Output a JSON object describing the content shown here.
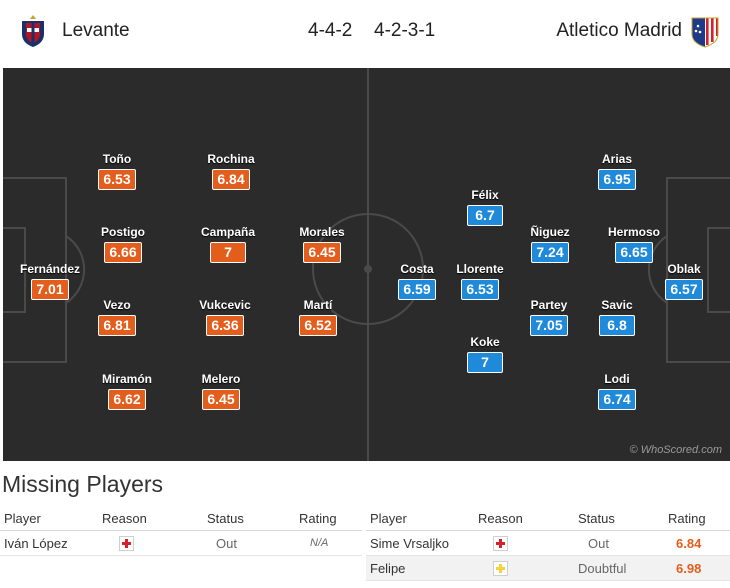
{
  "header": {
    "home_team": "Levante",
    "away_team": "Atletico Madrid",
    "home_formation": "4-4-2",
    "away_formation": "4-2-3-1",
    "home_crest_icon": "levante-crest-icon",
    "away_crest_icon": "atletico-crest-icon"
  },
  "colors": {
    "home_rating": "#e35e1c",
    "away_rating": "#1f8ad9",
    "pitch": "#2b2b2b"
  },
  "home_players": [
    {
      "name": "Toño",
      "rating": "6.53"
    },
    {
      "name": "Rochina",
      "rating": "6.84"
    },
    {
      "name": "Postigo",
      "rating": "6.66"
    },
    {
      "name": "Campaña",
      "rating": "7"
    },
    {
      "name": "Morales",
      "rating": "6.45"
    },
    {
      "name": "Fernández",
      "rating": "7.01"
    },
    {
      "name": "Vezo",
      "rating": "6.81"
    },
    {
      "name": "Vukcevic",
      "rating": "6.36"
    },
    {
      "name": "Martí",
      "rating": "6.52"
    },
    {
      "name": "Miramón",
      "rating": "6.62"
    },
    {
      "name": "Melero",
      "rating": "6.45"
    }
  ],
  "away_players": [
    {
      "name": "Arias",
      "rating": "6.95"
    },
    {
      "name": "Félix",
      "rating": "6.7"
    },
    {
      "name": "Ñiguez",
      "rating": "7.24"
    },
    {
      "name": "Hermoso",
      "rating": "6.65"
    },
    {
      "name": "Costa",
      "rating": "6.59"
    },
    {
      "name": "Llorente",
      "rating": "6.53"
    },
    {
      "name": "Oblak",
      "rating": "6.57"
    },
    {
      "name": "Partey",
      "rating": "7.05"
    },
    {
      "name": "Savic",
      "rating": "6.8"
    },
    {
      "name": "Koke",
      "rating": "7"
    },
    {
      "name": "Lodi",
      "rating": "6.74"
    }
  ],
  "watermark": "© WhoScored.com",
  "missing": {
    "title": "Missing Players",
    "headers": {
      "player": "Player",
      "reason": "Reason",
      "status": "Status",
      "rating": "Rating"
    },
    "home": [
      {
        "player": "Iván López",
        "reason_icon": "injury-icon",
        "status": "Out",
        "rating": "N/A"
      }
    ],
    "away": [
      {
        "player": "Sime Vrsaljko",
        "reason_icon": "injury-icon",
        "status": "Out",
        "rating": "6.84"
      },
      {
        "player": "Felipe",
        "reason_icon": "doubtful-icon",
        "status": "Doubtful",
        "rating": "6.98"
      }
    ]
  }
}
